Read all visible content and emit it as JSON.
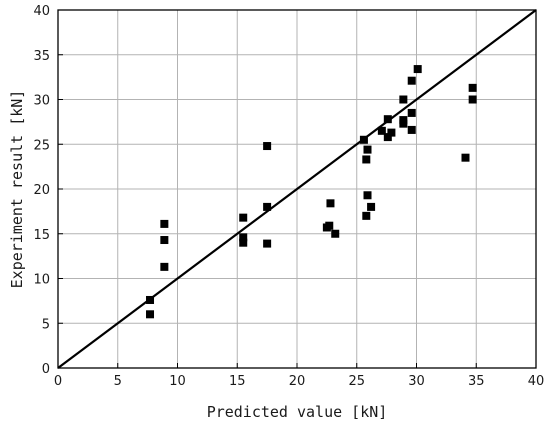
{
  "chart_data": {
    "type": "scatter",
    "title": "",
    "xlabel": "Predicted value [kN]",
    "ylabel": "Experiment result [kN]",
    "xlim": [
      0,
      40
    ],
    "ylim": [
      0,
      40
    ],
    "xticks": [
      0,
      5,
      10,
      15,
      20,
      25,
      30,
      35,
      40
    ],
    "yticks": [
      0,
      5,
      10,
      15,
      20,
      25,
      30,
      35,
      40
    ],
    "grid": true,
    "legend": "none",
    "reference_line": {
      "from": [
        0,
        0
      ],
      "to": [
        40,
        40
      ]
    },
    "marker_color": "#000000",
    "series": [
      {
        "points": [
          [
            7.7,
            7.6
          ],
          [
            7.7,
            6.0
          ],
          [
            8.9,
            16.1
          ],
          [
            8.9,
            14.3
          ],
          [
            8.9,
            11.3
          ],
          [
            15.5,
            16.8
          ],
          [
            15.5,
            14.6
          ],
          [
            15.5,
            14.0
          ],
          [
            17.5,
            24.8
          ],
          [
            17.5,
            18.0
          ],
          [
            17.5,
            13.9
          ],
          [
            22.5,
            15.7
          ],
          [
            22.7,
            15.9
          ],
          [
            22.8,
            18.4
          ],
          [
            23.2,
            15.0
          ],
          [
            25.6,
            25.5
          ],
          [
            25.8,
            23.3
          ],
          [
            25.9,
            24.4
          ],
          [
            25.9,
            19.3
          ],
          [
            25.8,
            17.0
          ],
          [
            26.2,
            18.0
          ],
          [
            27.1,
            26.5
          ],
          [
            27.6,
            27.8
          ],
          [
            27.6,
            25.8
          ],
          [
            27.9,
            26.3
          ],
          [
            28.9,
            30.0
          ],
          [
            28.9,
            27.7
          ],
          [
            28.9,
            27.3
          ],
          [
            29.6,
            32.1
          ],
          [
            29.6,
            28.5
          ],
          [
            29.6,
            26.6
          ],
          [
            30.1,
            33.4
          ],
          [
            34.1,
            23.5
          ],
          [
            34.7,
            31.3
          ],
          [
            34.7,
            30.0
          ]
        ]
      }
    ]
  }
}
